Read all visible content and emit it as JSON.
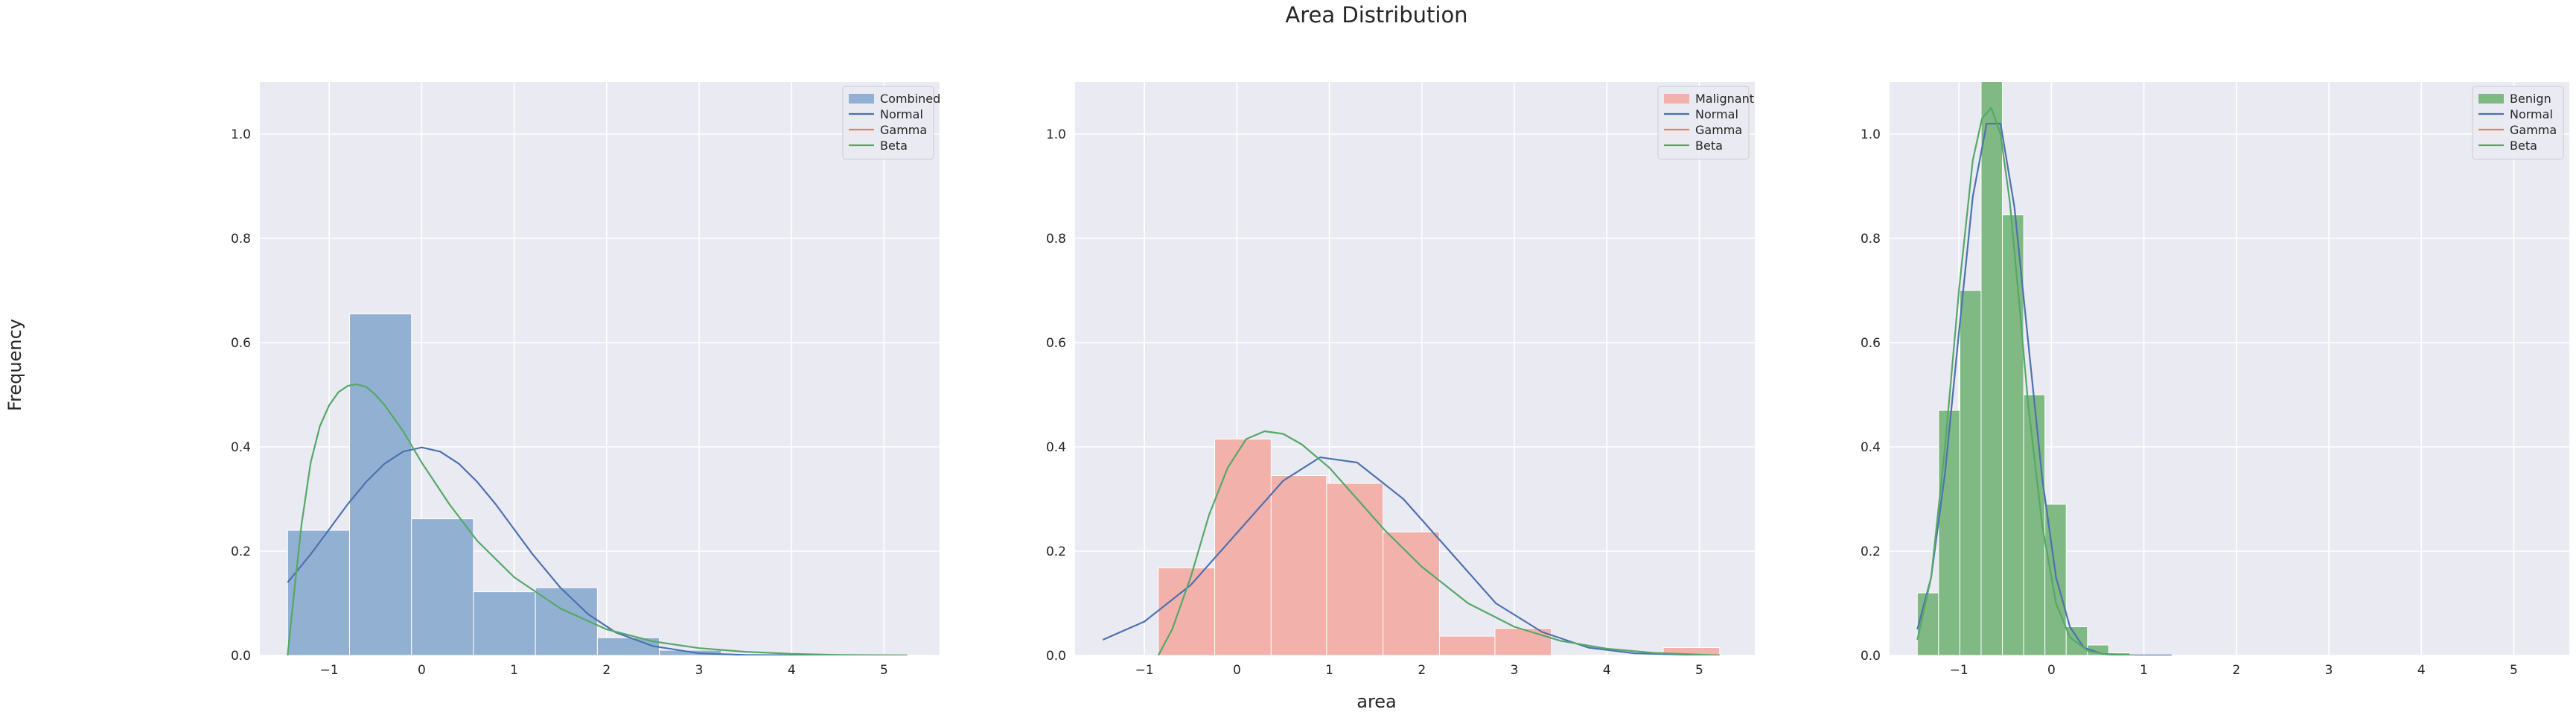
{
  "figure": {
    "title": "Area Distribution",
    "xlabel": "area",
    "ylabel": "Frequency"
  },
  "chart_data": [
    {
      "type": "bar",
      "panel": "combined",
      "xlim": [
        -1.75,
        5.6
      ],
      "ylim": [
        0,
        1.1
      ],
      "xticks": [
        -1,
        0,
        1,
        2,
        3,
        4,
        5
      ],
      "yticks": [
        0.0,
        0.2,
        0.4,
        0.6,
        0.8,
        1.0
      ],
      "grid": true,
      "legend_position": "top-right",
      "hist": {
        "name": "Combined",
        "color": "#92b0d2",
        "edges": [
          -1.45,
          -0.78,
          -0.11,
          0.56,
          1.23,
          1.9,
          2.57,
          3.24,
          3.91,
          4.58,
          5.25
        ],
        "values": [
          0.24,
          0.655,
          0.262,
          0.122,
          0.13,
          0.034,
          0.01,
          0.003,
          0.001,
          0.001
        ]
      },
      "series": [
        {
          "name": "Normal",
          "color": "#4c72b0",
          "x": [
            -1.45,
            -1.2,
            -1.0,
            -0.8,
            -0.6,
            -0.4,
            -0.2,
            0.0,
            0.2,
            0.4,
            0.6,
            0.8,
            1.0,
            1.2,
            1.5,
            1.8,
            2.1,
            2.5,
            3.0,
            3.5,
            4.0,
            4.5,
            5.25
          ],
          "y": [
            0.14,
            0.194,
            0.242,
            0.29,
            0.333,
            0.368,
            0.391,
            0.399,
            0.391,
            0.368,
            0.333,
            0.29,
            0.242,
            0.194,
            0.13,
            0.079,
            0.044,
            0.018,
            0.004,
            0.001,
            0.0,
            0.0,
            0.0
          ]
        },
        {
          "name": "Gamma",
          "color": "#dd8452",
          "x": [],
          "y": []
        },
        {
          "name": "Beta",
          "color": "#55a868",
          "x": [
            -1.45,
            -1.38,
            -1.3,
            -1.2,
            -1.1,
            -1.0,
            -0.9,
            -0.8,
            -0.7,
            -0.6,
            -0.5,
            -0.4,
            -0.2,
            0.0,
            0.3,
            0.6,
            1.0,
            1.5,
            2.0,
            2.5,
            3.0,
            3.5,
            4.0,
            4.5,
            5.25
          ],
          "y": [
            0.0,
            0.12,
            0.25,
            0.37,
            0.44,
            0.48,
            0.505,
            0.517,
            0.52,
            0.515,
            0.5,
            0.48,
            0.43,
            0.37,
            0.29,
            0.22,
            0.15,
            0.09,
            0.05,
            0.027,
            0.014,
            0.007,
            0.003,
            0.001,
            0.0
          ]
        }
      ]
    },
    {
      "type": "bar",
      "panel": "malignant",
      "xlim": [
        -1.75,
        5.6
      ],
      "ylim": [
        0,
        1.1
      ],
      "xticks": [
        -1,
        0,
        1,
        2,
        3,
        4,
        5
      ],
      "yticks": [
        0.0,
        0.2,
        0.4,
        0.6,
        0.8,
        1.0
      ],
      "grid": true,
      "legend_position": "top-right",
      "hist": {
        "name": "Malignant",
        "color": "#f2b1aa",
        "edges": [
          -0.85,
          -0.24,
          0.37,
          0.97,
          1.58,
          2.19,
          2.79,
          3.4,
          4.01,
          4.61,
          5.22
        ],
        "values": [
          0.168,
          0.415,
          0.345,
          0.33,
          0.237,
          0.037,
          0.052,
          0.0,
          0.0,
          0.015
        ]
      },
      "series": [
        {
          "name": "Normal",
          "color": "#4c72b0",
          "x": [
            -1.45,
            -1.0,
            -0.5,
            0.0,
            0.5,
            0.9,
            1.3,
            1.8,
            2.3,
            2.8,
            3.3,
            3.8,
            4.3,
            5.22
          ],
          "y": [
            0.03,
            0.065,
            0.135,
            0.235,
            0.335,
            0.38,
            0.37,
            0.3,
            0.2,
            0.1,
            0.045,
            0.015,
            0.004,
            0.0
          ]
        },
        {
          "name": "Gamma",
          "color": "#dd8452",
          "x": [],
          "y": []
        },
        {
          "name": "Beta",
          "color": "#55a868",
          "x": [
            -0.85,
            -0.7,
            -0.5,
            -0.3,
            -0.1,
            0.1,
            0.3,
            0.5,
            0.7,
            1.0,
            1.3,
            1.6,
            2.0,
            2.5,
            3.0,
            3.5,
            4.0,
            4.5,
            5.22
          ],
          "y": [
            0.0,
            0.05,
            0.15,
            0.27,
            0.36,
            0.415,
            0.43,
            0.425,
            0.405,
            0.36,
            0.3,
            0.24,
            0.17,
            0.1,
            0.055,
            0.028,
            0.013,
            0.005,
            0.0
          ]
        }
      ]
    },
    {
      "type": "bar",
      "panel": "benign",
      "xlim": [
        -1.75,
        5.6
      ],
      "ylim": [
        0,
        1.1
      ],
      "xticks": [
        -1,
        0,
        1,
        2,
        3,
        4,
        5
      ],
      "yticks": [
        0.0,
        0.2,
        0.4,
        0.6,
        0.8,
        1.0
      ],
      "grid": true,
      "legend_position": "top-right",
      "hist": {
        "name": "Benign",
        "color": "#80b984",
        "edges": [
          -1.45,
          -1.22,
          -0.99,
          -0.76,
          -0.53,
          -0.3,
          -0.07,
          0.16,
          0.39,
          0.62,
          0.85
        ],
        "values": [
          0.12,
          0.47,
          0.7,
          1.11,
          0.845,
          0.5,
          0.29,
          0.055,
          0.02,
          0.005
        ]
      },
      "series": [
        {
          "name": "Normal",
          "color": "#4c72b0",
          "x": [
            -1.45,
            -1.3,
            -1.15,
            -1.0,
            -0.85,
            -0.7,
            -0.55,
            -0.4,
            -0.25,
            -0.1,
            0.05,
            0.2,
            0.35,
            0.55,
            0.85,
            1.3
          ],
          "y": [
            0.05,
            0.15,
            0.35,
            0.62,
            0.88,
            1.02,
            1.02,
            0.86,
            0.6,
            0.34,
            0.15,
            0.055,
            0.015,
            0.003,
            0.0,
            0.0
          ]
        },
        {
          "name": "Gamma",
          "color": "#dd8452",
          "x": [],
          "y": []
        },
        {
          "name": "Beta",
          "color": "#55a868",
          "x": [
            -1.45,
            -1.3,
            -1.15,
            -1.0,
            -0.85,
            -0.75,
            -0.65,
            -0.55,
            -0.45,
            -0.35,
            -0.25,
            -0.1,
            0.05,
            0.2,
            0.4,
            0.6,
            0.9
          ],
          "y": [
            0.03,
            0.15,
            0.4,
            0.7,
            0.95,
            1.03,
            1.05,
            1.0,
            0.87,
            0.68,
            0.48,
            0.25,
            0.1,
            0.035,
            0.008,
            0.002,
            0.0
          ]
        }
      ]
    }
  ]
}
